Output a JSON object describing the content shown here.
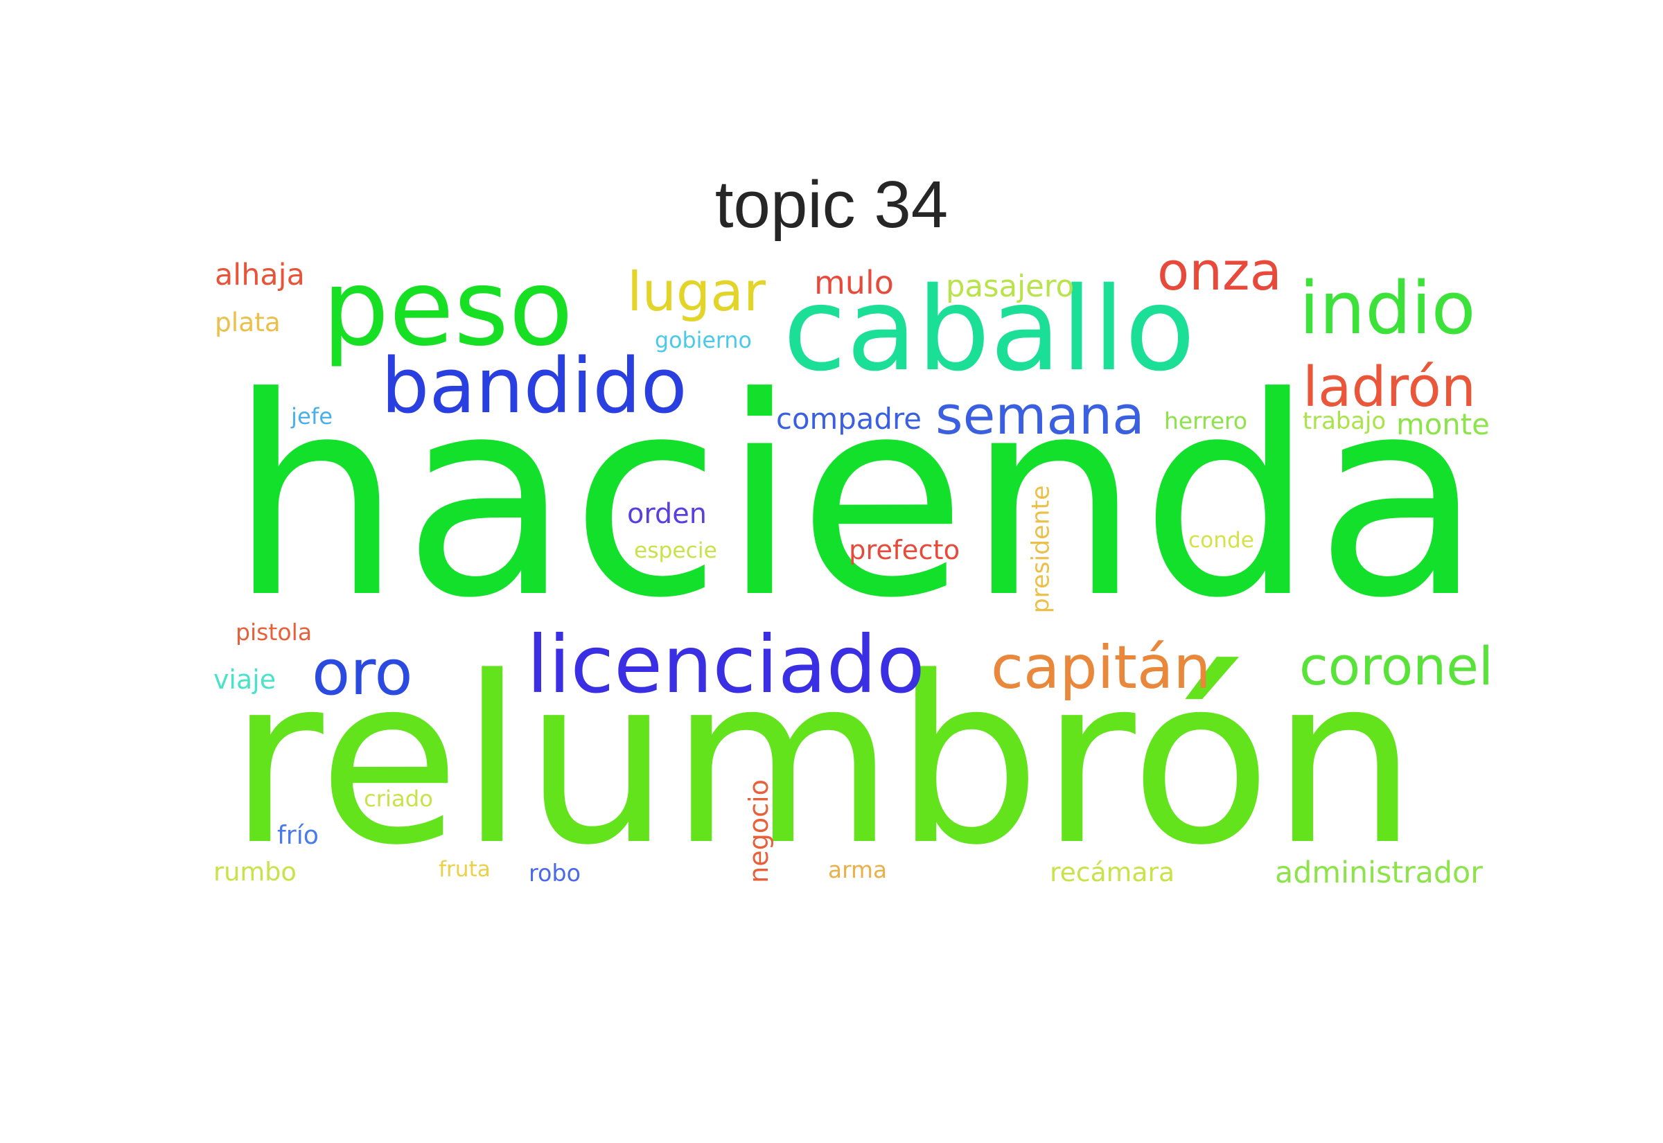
{
  "title": "topic 34",
  "words": [
    {
      "text": "hacienda",
      "color": "#12e02b",
      "vertical": false
    },
    {
      "text": "relumbrón",
      "color": "#62e31c",
      "vertical": false
    },
    {
      "text": "caballo",
      "color": "#1bdf97",
      "vertical": false
    },
    {
      "text": "peso",
      "color": "#17df23",
      "vertical": false
    },
    {
      "text": "bandido",
      "color": "#2a3fe0",
      "vertical": false
    },
    {
      "text": "licenciado",
      "color": "#3a2fe2",
      "vertical": false
    },
    {
      "text": "oro",
      "color": "#2a4ae0",
      "vertical": false
    },
    {
      "text": "capitán",
      "color": "#e9873a",
      "vertical": false
    },
    {
      "text": "coronel",
      "color": "#59e33a",
      "vertical": false
    },
    {
      "text": "indio",
      "color": "#3ce23a",
      "vertical": false
    },
    {
      "text": "ladrón",
      "color": "#e9563a",
      "vertical": false
    },
    {
      "text": "onza",
      "color": "#e74a3a",
      "vertical": false
    },
    {
      "text": "lugar",
      "color": "#e3d42a",
      "vertical": false
    },
    {
      "text": "semana",
      "color": "#3a5fe0",
      "vertical": false
    },
    {
      "text": "compadre",
      "color": "#3a5fe0",
      "vertical": false
    },
    {
      "text": "mulo",
      "color": "#e74a3a",
      "vertical": false
    },
    {
      "text": "pasajero",
      "color": "#b8e34a",
      "vertical": false
    },
    {
      "text": "alhaja",
      "color": "#e7543a",
      "vertical": false
    },
    {
      "text": "plata",
      "color": "#ebc04a",
      "vertical": false
    },
    {
      "text": "gobierno",
      "color": "#4ac9eb",
      "vertical": false
    },
    {
      "text": "jefe",
      "color": "#4ab0eb",
      "vertical": false
    },
    {
      "text": "herrero",
      "color": "#8de34a",
      "vertical": false
    },
    {
      "text": "trabajo",
      "color": "#a8e34a",
      "vertical": false
    },
    {
      "text": "monte",
      "color": "#8de34a",
      "vertical": false
    },
    {
      "text": "orden",
      "color": "#5a3fe0",
      "vertical": false
    },
    {
      "text": "especie",
      "color": "#c8e34a",
      "vertical": false
    },
    {
      "text": "prefecto",
      "color": "#e74a3a",
      "vertical": false
    },
    {
      "text": "presidente",
      "color": "#ebc04a",
      "vertical": true
    },
    {
      "text": "conde",
      "color": "#d4e34a",
      "vertical": false
    },
    {
      "text": "pistola",
      "color": "#e7603a",
      "vertical": false
    },
    {
      "text": "viaje",
      "color": "#4ae3c9",
      "vertical": false
    },
    {
      "text": "criado",
      "color": "#c8e34a",
      "vertical": false
    },
    {
      "text": "frío",
      "color": "#4a7aeb",
      "vertical": false
    },
    {
      "text": "negocio",
      "color": "#e7603a",
      "vertical": true
    },
    {
      "text": "rumbo",
      "color": "#c8e34a",
      "vertical": false
    },
    {
      "text": "fruta",
      "color": "#ebd04a",
      "vertical": false
    },
    {
      "text": "robo",
      "color": "#4a6aeb",
      "vertical": false
    },
    {
      "text": "arma",
      "color": "#ebb04a",
      "vertical": false
    },
    {
      "text": "recámara",
      "color": "#c8e34a",
      "vertical": false
    },
    {
      "text": "administrador",
      "color": "#8de34a",
      "vertical": false
    }
  ]
}
